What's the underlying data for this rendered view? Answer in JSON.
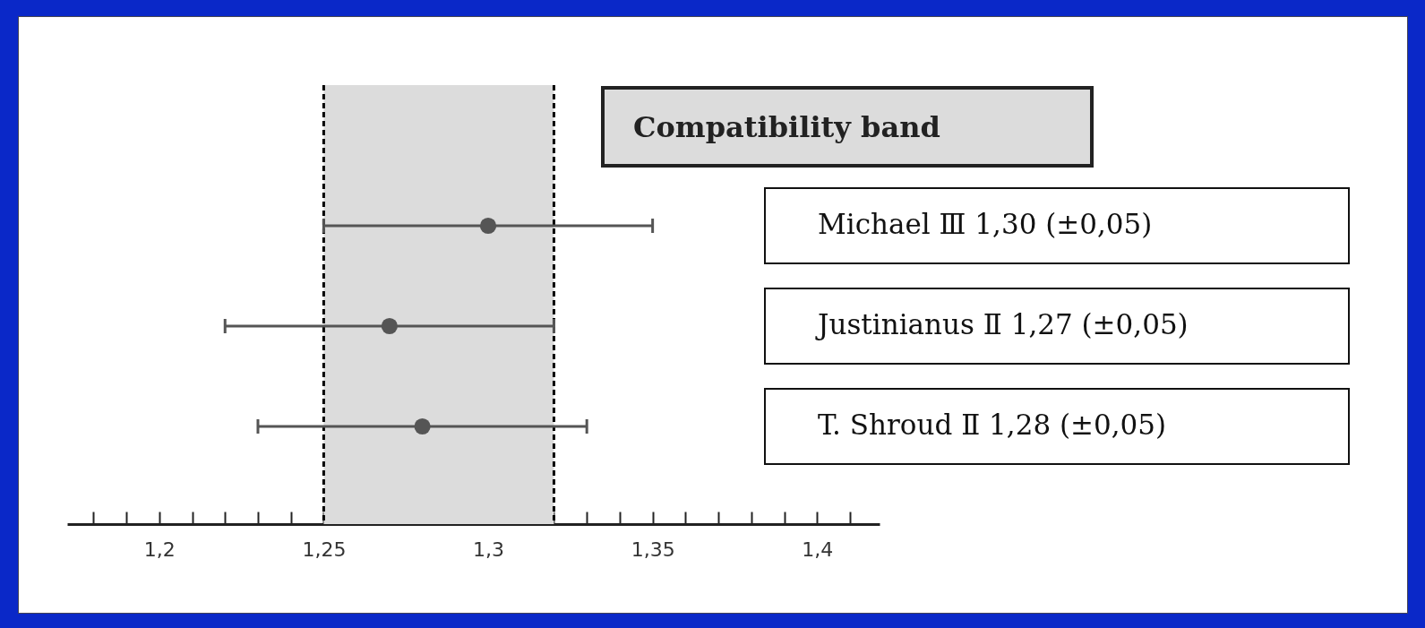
{
  "chart_data": {
    "type": "scatter",
    "orientation": "horizontal",
    "marker": "circle",
    "categories": [
      "Michael Ⅲ 1,30 (±0,05)",
      "Justinianus Ⅱ 1,27 (±0,05)",
      "T. Shroud Ⅱ 1,28 (±0,05)"
    ],
    "values": [
      1.3,
      1.27,
      1.28
    ],
    "errors": [
      0.05,
      0.05,
      0.05
    ],
    "color": "#555555",
    "xlim": [
      1.172,
      1.419
    ],
    "xticks": [
      {
        "value": 1.18,
        "label": null
      },
      {
        "value": 1.19,
        "label": null
      },
      {
        "value": 1.2,
        "label": "1,2"
      },
      {
        "value": 1.21,
        "label": null
      },
      {
        "value": 1.22,
        "label": null
      },
      {
        "value": 1.23,
        "label": null
      },
      {
        "value": 1.24,
        "label": null
      },
      {
        "value": 1.25,
        "label": "1,25"
      },
      {
        "value": 1.26,
        "label": null
      },
      {
        "value": 1.27,
        "label": null
      },
      {
        "value": 1.28,
        "label": null
      },
      {
        "value": 1.29,
        "label": null
      },
      {
        "value": 1.3,
        "label": "1,3"
      },
      {
        "value": 1.31,
        "label": null
      },
      {
        "value": 1.32,
        "label": null
      },
      {
        "value": 1.33,
        "label": null
      },
      {
        "value": 1.34,
        "label": null
      },
      {
        "value": 1.35,
        "label": "1,35"
      },
      {
        "value": 1.36,
        "label": null
      },
      {
        "value": 1.37,
        "label": null
      },
      {
        "value": 1.38,
        "label": null
      },
      {
        "value": 1.39,
        "label": null
      },
      {
        "value": 1.4,
        "label": "1,4"
      },
      {
        "value": 1.41,
        "label": null
      }
    ],
    "bands": [
      {
        "axis": "x",
        "from": 1.25,
        "to": 1.32,
        "label": "Compatibility band",
        "color": "#dcdcdc"
      }
    ],
    "ref_lines": [
      {
        "axis": "x",
        "value": 1.25,
        "line_style": "dashed",
        "color": "#000000"
      },
      {
        "axis": "x",
        "value": 1.32,
        "line_style": "dashed",
        "color": "#000000"
      }
    ],
    "grid": false
  }
}
